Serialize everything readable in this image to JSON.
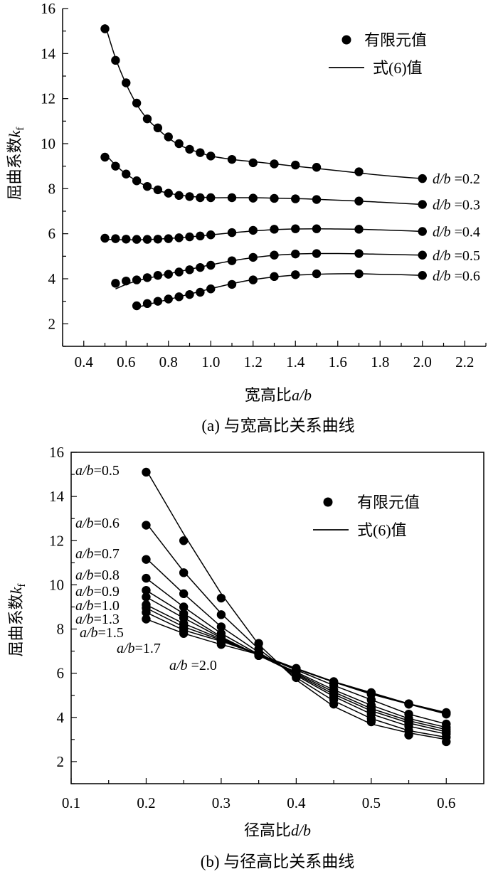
{
  "colors": {
    "ink": "#000000",
    "background": "#ffffff"
  },
  "chart_data": [
    {
      "id": "a",
      "type": "scatter+line",
      "caption": "(a) 与宽高比关系曲线",
      "xlabel": "宽高比a/b",
      "ylabel": "屈曲系数k_f",
      "xlabel_parts": {
        "text": "宽高比",
        "var": "a/b"
      },
      "ylabel_parts": {
        "text": "屈曲系数",
        "var": "k",
        "sub": "f"
      },
      "xlim": [
        0.3,
        2.3
      ],
      "ylim": [
        1,
        16
      ],
      "xticks": [
        "0.4",
        "0.6",
        "0.8",
        "1.0",
        "1.2",
        "1.4",
        "1.6",
        "1.8",
        "2.0",
        "2.2"
      ],
      "yticks": [
        "2",
        "4",
        "6",
        "8",
        "10",
        "12",
        "14",
        "16"
      ],
      "legend": {
        "position": "top-right",
        "points_label": "有限元值",
        "line_label": "式(6)值"
      },
      "series": [
        {
          "name": "d/b=0.2",
          "label_var": "d/b",
          "label_value": "=0.2",
          "x": [
            0.5,
            0.55,
            0.6,
            0.65,
            0.7,
            0.75,
            0.8,
            0.85,
            0.9,
            0.95,
            1.0,
            1.1,
            1.2,
            1.3,
            1.4,
            1.5,
            1.7,
            2.0
          ],
          "y": [
            15.1,
            13.7,
            12.7,
            11.8,
            11.1,
            10.7,
            10.3,
            10.0,
            9.75,
            9.6,
            9.45,
            9.3,
            9.15,
            9.1,
            9.05,
            8.95,
            8.75,
            8.45
          ],
          "line_x": [
            0.5,
            0.55,
            0.6,
            0.65,
            0.7,
            0.75,
            0.8,
            0.85,
            0.9,
            0.95,
            1.0,
            1.1,
            1.2,
            1.3,
            1.4,
            1.5,
            1.6,
            1.7,
            1.8,
            1.9,
            2.0
          ],
          "line_y": [
            15.3,
            13.8,
            12.65,
            11.75,
            11.1,
            10.65,
            10.25,
            9.95,
            9.75,
            9.6,
            9.45,
            9.3,
            9.2,
            9.1,
            9.0,
            8.9,
            8.8,
            8.7,
            8.6,
            8.52,
            8.45
          ]
        },
        {
          "name": "d/b=0.3",
          "label_var": "d/b",
          "label_value": "=0.3",
          "x": [
            0.5,
            0.55,
            0.6,
            0.65,
            0.7,
            0.75,
            0.8,
            0.85,
            0.9,
            0.95,
            1.0,
            1.1,
            1.2,
            1.3,
            1.4,
            1.5,
            1.7,
            2.0
          ],
          "y": [
            9.4,
            9.0,
            8.65,
            8.35,
            8.1,
            7.95,
            7.8,
            7.7,
            7.65,
            7.6,
            7.6,
            7.6,
            7.58,
            7.57,
            7.55,
            7.52,
            7.45,
            7.3
          ],
          "line_x": [
            0.5,
            0.55,
            0.6,
            0.65,
            0.7,
            0.75,
            0.8,
            0.85,
            0.9,
            0.95,
            1.0,
            1.1,
            1.2,
            1.3,
            1.4,
            1.5,
            1.6,
            1.7,
            1.8,
            1.9,
            2.0
          ],
          "line_y": [
            9.55,
            9.05,
            8.65,
            8.35,
            8.1,
            7.92,
            7.8,
            7.72,
            7.66,
            7.63,
            7.6,
            7.6,
            7.6,
            7.58,
            7.56,
            7.53,
            7.49,
            7.45,
            7.4,
            7.35,
            7.3
          ]
        },
        {
          "name": "d/b=0.4",
          "label_var": "d/b",
          "label_value": "=0.4",
          "x": [
            0.5,
            0.55,
            0.6,
            0.65,
            0.7,
            0.75,
            0.8,
            0.85,
            0.9,
            0.95,
            1.0,
            1.1,
            1.2,
            1.3,
            1.4,
            1.5,
            1.7,
            2.0
          ],
          "y": [
            5.8,
            5.78,
            5.76,
            5.75,
            5.75,
            5.76,
            5.78,
            5.82,
            5.86,
            5.9,
            5.95,
            6.05,
            6.15,
            6.2,
            6.22,
            6.22,
            6.2,
            6.1
          ],
          "line_x": [
            0.5,
            0.55,
            0.6,
            0.65,
            0.7,
            0.75,
            0.8,
            0.85,
            0.9,
            0.95,
            1.0,
            1.1,
            1.2,
            1.3,
            1.4,
            1.5,
            1.6,
            1.7,
            1.8,
            1.9,
            2.0
          ],
          "line_y": [
            5.75,
            5.74,
            5.73,
            5.73,
            5.74,
            5.76,
            5.79,
            5.82,
            5.86,
            5.9,
            5.95,
            6.04,
            6.12,
            6.18,
            6.21,
            6.22,
            6.21,
            6.2,
            6.17,
            6.14,
            6.1
          ]
        },
        {
          "name": "d/b=0.5",
          "label_var": "d/b",
          "label_value": "=0.5",
          "x": [
            0.55,
            0.6,
            0.65,
            0.7,
            0.75,
            0.8,
            0.85,
            0.9,
            0.95,
            1.0,
            1.1,
            1.2,
            1.3,
            1.4,
            1.5,
            1.7,
            2.0
          ],
          "y": [
            3.8,
            3.9,
            3.95,
            4.05,
            4.15,
            4.2,
            4.3,
            4.4,
            4.5,
            4.6,
            4.8,
            4.95,
            5.05,
            5.1,
            5.12,
            5.12,
            5.05
          ],
          "line_x": [
            0.55,
            0.6,
            0.65,
            0.7,
            0.75,
            0.8,
            0.85,
            0.9,
            0.95,
            1.0,
            1.1,
            1.2,
            1.3,
            1.4,
            1.5,
            1.6,
            1.7,
            1.8,
            1.9,
            2.0
          ],
          "line_y": [
            3.55,
            3.75,
            3.9,
            4.02,
            4.12,
            4.22,
            4.32,
            4.42,
            4.52,
            4.62,
            4.8,
            4.94,
            5.04,
            5.1,
            5.12,
            5.12,
            5.11,
            5.09,
            5.07,
            5.05
          ]
        },
        {
          "name": "d/b=0.6",
          "label_var": "d/b",
          "label_value": "=0.6",
          "x": [
            0.65,
            0.7,
            0.75,
            0.8,
            0.85,
            0.9,
            0.95,
            1.0,
            1.1,
            1.2,
            1.3,
            1.4,
            1.5,
            1.7,
            2.0
          ],
          "y": [
            2.8,
            2.9,
            3.0,
            3.1,
            3.2,
            3.3,
            3.4,
            3.55,
            3.75,
            3.95,
            4.1,
            4.18,
            4.22,
            4.22,
            4.15
          ],
          "line_x": [
            0.65,
            0.7,
            0.75,
            0.8,
            0.85,
            0.9,
            0.95,
            1.0,
            1.1,
            1.2,
            1.3,
            1.4,
            1.5,
            1.6,
            1.7,
            1.8,
            1.9,
            2.0
          ],
          "line_y": [
            2.72,
            2.85,
            2.97,
            3.08,
            3.2,
            3.32,
            3.44,
            3.56,
            3.78,
            3.96,
            4.08,
            4.16,
            4.2,
            4.22,
            4.22,
            4.2,
            4.18,
            4.15
          ]
        }
      ]
    },
    {
      "id": "b",
      "type": "scatter+line",
      "caption": "(b) 与径高比关系曲线",
      "xlabel": "径高比d/b",
      "ylabel": "屈曲系数k_f",
      "xlabel_parts": {
        "text": "径高比",
        "var": "d/b"
      },
      "ylabel_parts": {
        "text": "屈曲系数",
        "var": "k",
        "sub": "f"
      },
      "xlim": [
        0.1,
        0.65
      ],
      "ylim": [
        1,
        16
      ],
      "xticks": [
        "0.1",
        "0.2",
        "0.3",
        "0.4",
        "0.5",
        "0.6"
      ],
      "yticks": [
        "2",
        "4",
        "6",
        "8",
        "10",
        "12",
        "14",
        "16"
      ],
      "legend": {
        "position": "top-right",
        "points_label": "有限元值",
        "line_label": "式(6)值"
      },
      "x": [
        0.2,
        0.25,
        0.3,
        0.35,
        0.4,
        0.45,
        0.5,
        0.55,
        0.6
      ],
      "series": [
        {
          "name": "a/b=0.5",
          "label_var": "a/b",
          "label_value": "=0.5",
          "y": [
            15.1,
            12.0,
            9.4,
            7.35,
            5.8,
            4.6,
            3.8,
            3.2,
            2.9
          ],
          "line_y": [
            15.2,
            12.3,
            9.6,
            7.3,
            5.7,
            4.5,
            3.7,
            3.3,
            3.0
          ]
        },
        {
          "name": "a/b=0.6",
          "label_var": "a/b",
          "label_value": "=0.6",
          "y": [
            12.7,
            10.55,
            8.65,
            7.1,
            5.85,
            4.8,
            3.95,
            3.4,
            3.1
          ],
          "line_y": [
            12.8,
            10.6,
            8.7,
            7.1,
            5.8,
            4.75,
            3.95,
            3.4,
            3.1
          ]
        },
        {
          "name": "a/b=0.7",
          "label_var": "a/b",
          "label_value": "=0.7",
          "y": [
            11.15,
            9.6,
            8.1,
            6.95,
            5.9,
            4.95,
            4.15,
            3.6,
            3.25
          ],
          "line_y": [
            11.2,
            9.6,
            8.1,
            6.95,
            5.9,
            4.95,
            4.15,
            3.6,
            3.25
          ]
        },
        {
          "name": "a/b=0.8",
          "label_var": "a/b",
          "label_value": "=0.8",
          "y": [
            10.3,
            9.0,
            7.8,
            6.85,
            5.95,
            5.05,
            4.3,
            3.75,
            3.35
          ],
          "line_y": [
            10.3,
            9.0,
            7.8,
            6.85,
            5.95,
            5.05,
            4.3,
            3.75,
            3.35
          ]
        },
        {
          "name": "a/b=0.9",
          "label_var": "a/b",
          "label_value": "=0.9",
          "y": [
            9.75,
            8.7,
            7.65,
            6.8,
            6.0,
            5.15,
            4.4,
            3.85,
            3.45
          ],
          "line_y": [
            9.75,
            8.7,
            7.65,
            6.8,
            6.0,
            5.15,
            4.4,
            3.85,
            3.45
          ]
        },
        {
          "name": "a/b=1.0",
          "label_var": "a/b",
          "label_value": "=1.0",
          "y": [
            9.45,
            8.5,
            7.6,
            6.8,
            6.05,
            5.25,
            4.55,
            3.95,
            3.55
          ],
          "line_y": [
            9.45,
            8.5,
            7.6,
            6.8,
            6.05,
            5.25,
            4.55,
            3.95,
            3.55
          ]
        },
        {
          "name": "a/b=1.3",
          "label_var": "a/b",
          "label_value": "=1.3",
          "y": [
            9.1,
            8.25,
            7.55,
            6.85,
            6.15,
            5.45,
            4.8,
            4.15,
            3.7
          ],
          "line_y": [
            9.1,
            8.25,
            7.55,
            6.85,
            6.15,
            5.45,
            4.8,
            4.15,
            3.7
          ]
        },
        {
          "name": "a/b=1.5",
          "label_var": "a/b",
          "label_value": "=1.5",
          "y": [
            8.95,
            8.1,
            7.5,
            6.85,
            6.2,
            5.6,
            5.1,
            4.6,
            4.2
          ],
          "line_y": [
            8.95,
            8.1,
            7.5,
            6.85,
            6.2,
            5.6,
            5.1,
            4.6,
            4.2
          ]
        },
        {
          "name": "a/b=1.7",
          "label_var": "a/b",
          "label_value": "=1.7",
          "y": [
            8.75,
            7.95,
            7.45,
            6.85,
            6.22,
            5.62,
            5.12,
            4.62,
            4.22
          ],
          "line_y": [
            8.75,
            7.95,
            7.45,
            6.85,
            6.22,
            5.62,
            5.12,
            4.62,
            4.22
          ]
        },
        {
          "name": "a/b=2.0",
          "label_var": "a/b",
          "label_value": "=2.0",
          "y": [
            8.45,
            7.8,
            7.3,
            6.85,
            6.2,
            5.6,
            5.05,
            4.6,
            4.15
          ],
          "line_y": [
            8.45,
            7.8,
            7.3,
            6.85,
            6.2,
            5.6,
            5.05,
            4.6,
            4.15
          ]
        }
      ]
    }
  ]
}
